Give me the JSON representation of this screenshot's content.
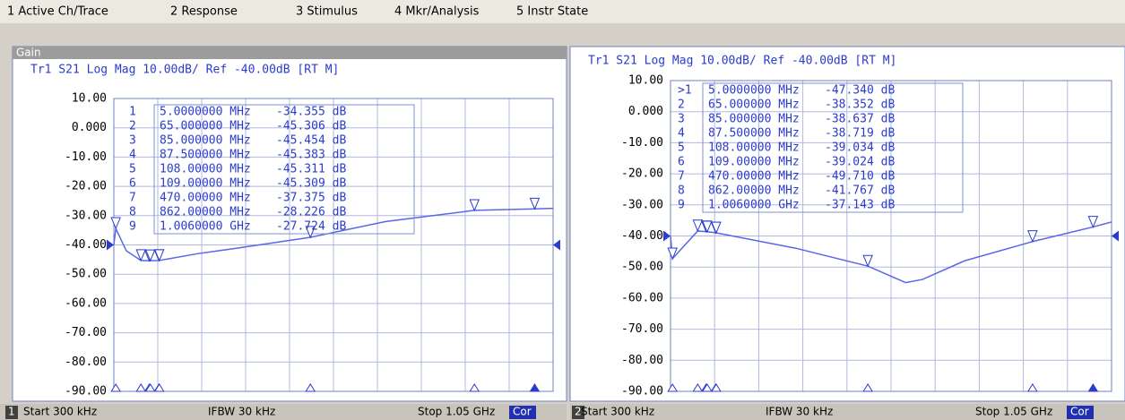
{
  "menu": [
    "1 Active Ch/Trace",
    "2 Response",
    "3 Stimulus",
    "4 Mkr/Analysis",
    "5 Instr State"
  ],
  "panels": [
    {
      "title": "Gain",
      "header": "Tr1 S21 Log Mag 10.00dB/ Ref -40.00dB [RT M]",
      "ylim": [
        -90,
        10
      ],
      "xlim": [
        0.3,
        1050
      ],
      "yticks": [
        {
          "value": 10,
          "label": "10.00"
        },
        {
          "value": 0,
          "label": "0.000"
        },
        {
          "value": -10,
          "label": "-10.00"
        },
        {
          "value": -20,
          "label": "-20.00"
        },
        {
          "value": -30,
          "label": "-30.00"
        },
        {
          "value": -40,
          "label": "-40.00"
        },
        {
          "value": -50,
          "label": "-50.00"
        },
        {
          "value": -60,
          "label": "-60.00"
        },
        {
          "value": -70,
          "label": "-70.00"
        },
        {
          "value": -80,
          "label": "-80.00"
        },
        {
          "value": -90,
          "label": "-90.00"
        }
      ],
      "markers": [
        {
          "label": "1",
          "freq": "5.0000000 MHz",
          "value": "-34.355 dB",
          "x": 5,
          "y": -34.355
        },
        {
          "label": "2",
          "freq": "65.000000 MHz",
          "value": "-45.306 dB",
          "x": 65,
          "y": -45.306
        },
        {
          "label": "3",
          "freq": "85.000000 MHz",
          "value": "-45.454 dB",
          "x": 85,
          "y": -45.454
        },
        {
          "label": "4",
          "freq": "87.500000 MHz",
          "value": "-45.383 dB",
          "x": 87.5,
          "y": -45.383
        },
        {
          "label": "5",
          "freq": "108.00000 MHz",
          "value": "-45.311 dB",
          "x": 108,
          "y": -45.311
        },
        {
          "label": "6",
          "freq": "109.00000 MHz",
          "value": "-45.309 dB",
          "x": 109,
          "y": -45.309
        },
        {
          "label": "7",
          "freq": "470.00000 MHz",
          "value": "-37.375 dB",
          "x": 470,
          "y": -37.375
        },
        {
          "label": "8",
          "freq": "862.00000 MHz",
          "value": "-28.226 dB",
          "x": 862,
          "y": -28.226
        },
        {
          "label": "9",
          "freq": "1.0060000 GHz",
          "value": "-27.724 dB",
          "x": 1006,
          "y": -27.724
        }
      ],
      "trace": {
        "x": [
          0.3,
          5,
          30,
          65,
          87.5,
          109,
          200,
          300,
          470,
          650,
          862,
          1006,
          1050
        ],
        "y": [
          -40,
          -34.4,
          -42,
          -45.3,
          -45.4,
          -45.3,
          -43,
          -41,
          -37.4,
          -32,
          -28.2,
          -27.7,
          -27.5
        ]
      },
      "footer": {
        "channel": "1",
        "start": "Start 300 kHz",
        "ifbw": "IFBW 30 kHz",
        "stop": "Stop 1.05 GHz",
        "cor": "Cor"
      }
    },
    {
      "header": "Tr1 S21 Log Mag 10.00dB/ Ref -40.00dB [RT M]",
      "ylim": [
        -90,
        10
      ],
      "xlim": [
        0.3,
        1050
      ],
      "yticks": [
        {
          "value": 10,
          "label": "10.00"
        },
        {
          "value": 0,
          "label": "0.000"
        },
        {
          "value": -10,
          "label": "-10.00"
        },
        {
          "value": -20,
          "label": "-20.00"
        },
        {
          "value": -30,
          "label": "-30.00"
        },
        {
          "value": -40,
          "label": "-40.00"
        },
        {
          "value": -50,
          "label": "-50.00"
        },
        {
          "value": -60,
          "label": "-60.00"
        },
        {
          "value": -70,
          "label": "-70.00"
        },
        {
          "value": -80,
          "label": "-80.00"
        },
        {
          "value": -90,
          "label": "-90.00"
        }
      ],
      "markers": [
        {
          "label": ">1",
          "freq": "5.0000000 MHz",
          "value": "-47.340 dB",
          "x": 5,
          "y": -47.34
        },
        {
          "label": "2",
          "freq": "65.000000 MHz",
          "value": "-38.352 dB",
          "x": 65,
          "y": -38.352
        },
        {
          "label": "3",
          "freq": "85.000000 MHz",
          "value": "-38.637 dB",
          "x": 85,
          "y": -38.637
        },
        {
          "label": "4",
          "freq": "87.500000 MHz",
          "value": "-38.719 dB",
          "x": 87.5,
          "y": -38.719
        },
        {
          "label": "5",
          "freq": "108.00000 MHz",
          "value": "-39.034 dB",
          "x": 108,
          "y": -39.034
        },
        {
          "label": "6",
          "freq": "109.00000 MHz",
          "value": "-39.024 dB",
          "x": 109,
          "y": -39.024
        },
        {
          "label": "7",
          "freq": "470.00000 MHz",
          "value": "-49.710 dB",
          "x": 470,
          "y": -49.71
        },
        {
          "label": "8",
          "freq": "862.00000 MHz",
          "value": "-41.767 dB",
          "x": 862,
          "y": -41.767
        },
        {
          "label": "9",
          "freq": "1.0060000 GHz",
          "value": "-37.143 dB",
          "x": 1006,
          "y": -37.143
        }
      ],
      "trace": {
        "x": [
          0.3,
          5,
          65,
          85,
          109,
          300,
          470,
          560,
          600,
          700,
          862,
          1006,
          1050
        ],
        "y": [
          -40,
          -47.3,
          -38.4,
          -38.6,
          -39,
          -44,
          -49.7,
          -55,
          -54,
          -48,
          -41.8,
          -37.1,
          -35.5
        ]
      },
      "footer": {
        "channel": "2",
        "start": "Start 300 kHz",
        "ifbw": "IFBW 30 kHz",
        "stop": "Stop 1.05 GHz",
        "cor": "Cor"
      }
    }
  ]
}
